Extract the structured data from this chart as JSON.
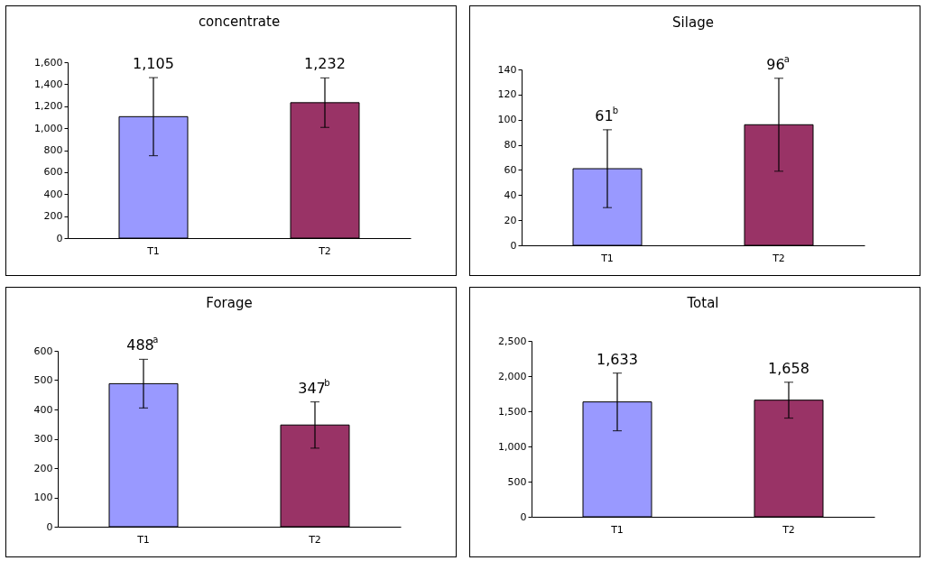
{
  "chart_data": [
    {
      "type": "bar",
      "title": "concentrate",
      "categories": [
        "T1",
        "T2"
      ],
      "values": [
        1105,
        1232
      ],
      "colors": [
        "#9999ff",
        "#993366"
      ],
      "errors": [
        355,
        225
      ],
      "value_labels": [
        "1,105",
        "1,232"
      ],
      "ylim": [
        0,
        1600
      ],
      "yticks": [
        0,
        200,
        400,
        600,
        800,
        {
          "value": 1000,
          "label": "1,000"
        },
        {
          "value": 1200,
          "label": "1,200"
        },
        {
          "value": 1400,
          "label": "1,400"
        },
        {
          "value": 1600,
          "label": "1,600"
        }
      ]
    },
    {
      "type": "bar",
      "title": "Silage",
      "categories": [
        "T1",
        "T2"
      ],
      "values": [
        61,
        96
      ],
      "colors": [
        "#9999ff",
        "#993366"
      ],
      "errors": [
        31,
        37
      ],
      "value_labels": [
        "61$^{b}$",
        "96$^{a}$"
      ],
      "ylim": [
        0,
        140
      ],
      "yticks": [
        0,
        20,
        40,
        60,
        80,
        100,
        120,
        140
      ]
    },
    {
      "type": "bar",
      "title": "Forage",
      "categories": [
        "T1",
        "T2"
      ],
      "values": [
        488,
        347
      ],
      "colors": [
        "#9999ff",
        "#993366"
      ],
      "errors": [
        83,
        79
      ],
      "value_labels": [
        "488$^{a}$",
        "347$^{b}$"
      ],
      "ylim": [
        0,
        600
      ],
      "yticks": [
        0,
        100,
        200,
        300,
        400,
        500,
        600
      ]
    },
    {
      "type": "bar",
      "title": "Total",
      "categories": [
        "T1",
        "T2"
      ],
      "values": [
        1633,
        1658
      ],
      "colors": [
        "#9999ff",
        "#993366"
      ],
      "errors": [
        410,
        255
      ],
      "value_labels": [
        "1,633",
        "1,658"
      ],
      "ylim": [
        0,
        2500
      ],
      "yticks": [
        0,
        500,
        {
          "value": 1000,
          "label": "1,000"
        },
        {
          "value": 1500,
          "label": "1,500"
        },
        {
          "value": 2000,
          "label": "2,000"
        },
        {
          "value": 2500,
          "label": "2,500"
        }
      ]
    }
  ]
}
